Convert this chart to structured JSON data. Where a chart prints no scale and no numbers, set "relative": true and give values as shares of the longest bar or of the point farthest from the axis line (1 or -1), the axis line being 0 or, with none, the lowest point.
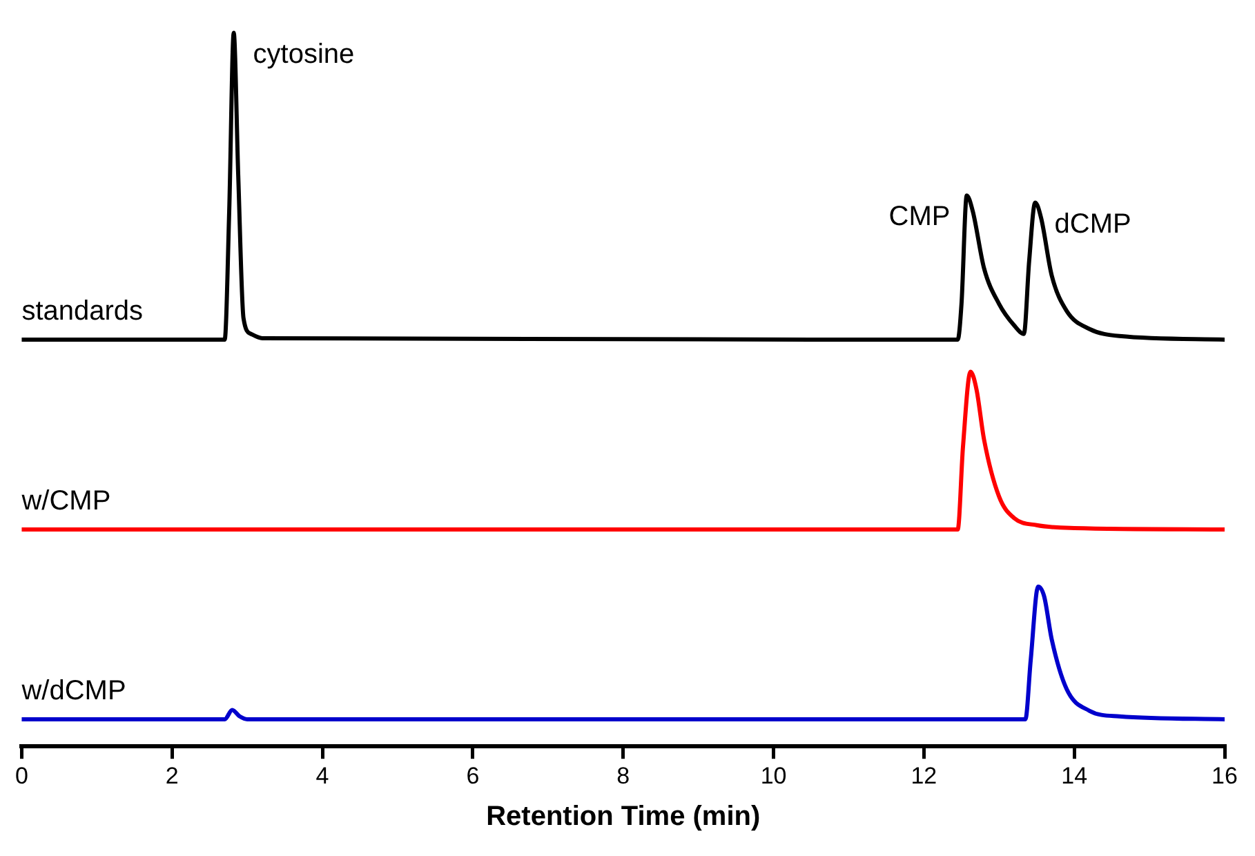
{
  "chart_data": {
    "type": "line",
    "relative": true,
    "xlabel": "Retention Time (min)",
    "xlim": [
      0,
      16
    ],
    "xticks": [
      0,
      2,
      4,
      6,
      8,
      10,
      12,
      14,
      16
    ],
    "tick_labels": "x",
    "grid": false,
    "legend": false,
    "marker": "none",
    "line_style": "solid",
    "series": [
      {
        "name": "standards",
        "color": "#000000",
        "x": [
          0,
          2.7,
          2.76,
          2.82,
          2.88,
          2.95,
          3.05,
          3.2,
          12.45,
          12.5,
          12.57,
          12.65,
          12.8,
          13.0,
          13.2,
          13.33,
          13.4,
          13.48,
          13.56,
          13.7,
          13.9,
          14.2,
          14.6,
          16
        ],
        "values": [
          0.57,
          0.57,
          0.75,
          1.0,
          0.8,
          0.6,
          0.578,
          0.572,
          0.57,
          0.62,
          0.772,
          0.75,
          0.67,
          0.62,
          0.59,
          0.578,
          0.68,
          0.762,
          0.74,
          0.66,
          0.61,
          0.585,
          0.575,
          0.57
        ]
      },
      {
        "name": "w/CMP",
        "color": "#ff0000",
        "x": [
          0,
          12.45,
          12.52,
          12.62,
          12.7,
          12.8,
          13.0,
          13.2,
          13.5,
          14,
          16
        ],
        "values": [
          0.304,
          0.304,
          0.42,
          0.525,
          0.5,
          0.43,
          0.35,
          0.32,
          0.31,
          0.306,
          0.304
        ]
      },
      {
        "name": "w/dCMP",
        "color": "#0000cc",
        "x": [
          0,
          2.7,
          2.8,
          2.9,
          3.0,
          13.35,
          13.42,
          13.52,
          13.6,
          13.7,
          13.9,
          14.2,
          14.6,
          16
        ],
        "values": [
          0.038,
          0.038,
          0.051,
          0.042,
          0.038,
          0.038,
          0.12,
          0.224,
          0.21,
          0.15,
          0.08,
          0.05,
          0.042,
          0.038
        ]
      }
    ],
    "annotations": [
      {
        "text": "cytosine",
        "x": 2.82,
        "y": 1.0
      },
      {
        "text": "CMP",
        "x": 12.57,
        "y": 0.772
      },
      {
        "text": "dCMP",
        "x": 13.48,
        "y": 0.762
      }
    ]
  }
}
